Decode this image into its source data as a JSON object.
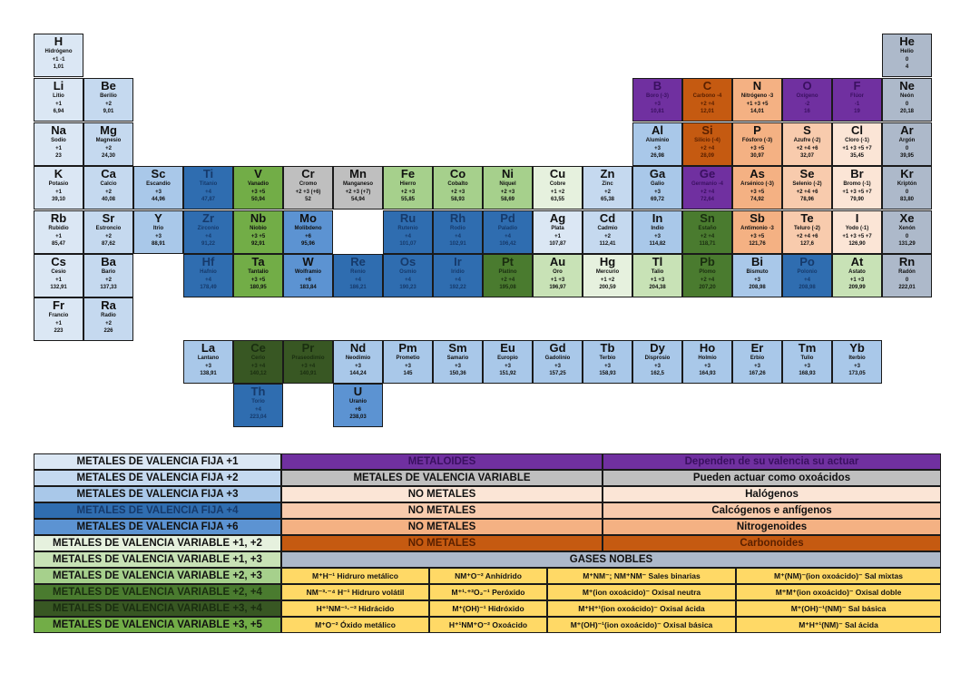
{
  "colors": {
    "fija1": "#dbe7f4",
    "fija2": "#c5d9ef",
    "fija3": "#a9c8e9",
    "fija4": "#2f6db0",
    "fija6": "#5c93d2",
    "var12": "#e6f1de",
    "var13": "#c8e2b6",
    "var23": "#a6d08c",
    "var24": "#4a7b2f",
    "var34": "#385723",
    "var35": "#72ad47",
    "metaloide": "#7030a0",
    "variable": "#bfbfbf",
    "halogen": "#fbe5d6",
    "calcogen": "#f8cbad",
    "nitrogen": "#f4b183",
    "carbon": "#c55a11",
    "noble": "#adb9ca",
    "compound": "#ffd966",
    "hydrogen": "#dbe7f4"
  },
  "elements": [
    {
      "sym": "H",
      "name": "Hidrógeno",
      "val": "+1 -1",
      "mass": "1,01",
      "col": 1,
      "row": 1,
      "cls": "hydrogen"
    },
    {
      "sym": "He",
      "name": "Helio",
      "val": "0",
      "mass": "4",
      "col": 18,
      "row": 1,
      "cls": "noble"
    },
    {
      "sym": "Li",
      "name": "Litio",
      "val": "+1",
      "mass": "6,94",
      "col": 1,
      "row": 2,
      "cls": "fija1"
    },
    {
      "sym": "Be",
      "name": "Berilio",
      "val": "+2",
      "mass": "9,01",
      "col": 2,
      "row": 2,
      "cls": "fija2"
    },
    {
      "sym": "B",
      "name": "Boro (-3)",
      "val": "+3",
      "mass": "10,81",
      "col": 13,
      "row": 2,
      "cls": "metaloide"
    },
    {
      "sym": "C",
      "name": "Carbono -4",
      "val": "+2 +4",
      "mass": "12,01",
      "col": 14,
      "row": 2,
      "cls": "carbon"
    },
    {
      "sym": "N",
      "name": "Nitrógeno -3",
      "val": "+1 +3 +5",
      "mass": "14,01",
      "col": 15,
      "row": 2,
      "cls": "nitrogen"
    },
    {
      "sym": "O",
      "name": "Oxígeno",
      "val": "-2",
      "mass": "16",
      "col": 16,
      "row": 2,
      "cls": "metaloide"
    },
    {
      "sym": "F",
      "name": "Flúor",
      "val": "-1",
      "mass": "19",
      "col": 17,
      "row": 2,
      "cls": "metaloide"
    },
    {
      "sym": "Ne",
      "name": "Neón",
      "val": "0",
      "mass": "20,18",
      "col": 18,
      "row": 2,
      "cls": "noble"
    },
    {
      "sym": "Na",
      "name": "Sodio",
      "val": "+1",
      "mass": "23",
      "col": 1,
      "row": 3,
      "cls": "fija1"
    },
    {
      "sym": "Mg",
      "name": "Magnesio",
      "val": "+2",
      "mass": "24,30",
      "col": 2,
      "row": 3,
      "cls": "fija2"
    },
    {
      "sym": "Al",
      "name": "Aluminio",
      "val": "+3",
      "mass": "26,98",
      "col": 13,
      "row": 3,
      "cls": "fija3"
    },
    {
      "sym": "Si",
      "name": "Silicio (-4)",
      "val": "+2 +4",
      "mass": "28,09",
      "col": 14,
      "row": 3,
      "cls": "carbon"
    },
    {
      "sym": "P",
      "name": "Fósforo (-3)",
      "val": "+3 +5",
      "mass": "30,97",
      "col": 15,
      "row": 3,
      "cls": "nitrogen"
    },
    {
      "sym": "S",
      "name": "Azufre (-2)",
      "val": "+2 +4 +6",
      "mass": "32,07",
      "col": 16,
      "row": 3,
      "cls": "calcogen"
    },
    {
      "sym": "Cl",
      "name": "Cloro (-1)",
      "val": "+1 +3 +5 +7",
      "mass": "35,45",
      "col": 17,
      "row": 3,
      "cls": "halogen"
    },
    {
      "sym": "Ar",
      "name": "Argón",
      "val": "0",
      "mass": "39,95",
      "col": 18,
      "row": 3,
      "cls": "noble"
    },
    {
      "sym": "K",
      "name": "Potasio",
      "val": "+1",
      "mass": "39,10",
      "col": 1,
      "row": 4,
      "cls": "fija1"
    },
    {
      "sym": "Ca",
      "name": "Calcio",
      "val": "+2",
      "mass": "40,08",
      "col": 2,
      "row": 4,
      "cls": "fija2"
    },
    {
      "sym": "Sc",
      "name": "Escandio",
      "val": "+3",
      "mass": "44,96",
      "col": 3,
      "row": 4,
      "cls": "fija3"
    },
    {
      "sym": "Ti",
      "name": "Titanio",
      "val": "+4",
      "mass": "47,87",
      "col": 4,
      "row": 4,
      "cls": "fija4"
    },
    {
      "sym": "V",
      "name": "Vanadio",
      "val": "+3 +5",
      "mass": "50,94",
      "col": 5,
      "row": 4,
      "cls": "var35"
    },
    {
      "sym": "Cr",
      "name": "Cromo",
      "val": "+2 +3 (+6)",
      "mass": "52",
      "col": 6,
      "row": 4,
      "cls": "variable"
    },
    {
      "sym": "Mn",
      "name": "Manganeso",
      "val": "+2 +3 (+7)",
      "mass": "54,94",
      "col": 7,
      "row": 4,
      "cls": "variable"
    },
    {
      "sym": "Fe",
      "name": "Hierro",
      "val": "+2 +3",
      "mass": "55,85",
      "col": 8,
      "row": 4,
      "cls": "var23"
    },
    {
      "sym": "Co",
      "name": "Cobalto",
      "val": "+2 +3",
      "mass": "58,93",
      "col": 9,
      "row": 4,
      "cls": "var23"
    },
    {
      "sym": "Ni",
      "name": "Níquel",
      "val": "+2 +3",
      "mass": "58,69",
      "col": 10,
      "row": 4,
      "cls": "var23"
    },
    {
      "sym": "Cu",
      "name": "Cobre",
      "val": "+1 +2",
      "mass": "63,55",
      "col": 11,
      "row": 4,
      "cls": "var12"
    },
    {
      "sym": "Zn",
      "name": "Zinc",
      "val": "+2",
      "mass": "65,38",
      "col": 12,
      "row": 4,
      "cls": "fija2"
    },
    {
      "sym": "Ga",
      "name": "Galio",
      "val": "+3",
      "mass": "69,72",
      "col": 13,
      "row": 4,
      "cls": "fija3"
    },
    {
      "sym": "Ge",
      "name": "Germanio -4",
      "val": "+2 +4",
      "mass": "72,64",
      "col": 14,
      "row": 4,
      "cls": "metaloide"
    },
    {
      "sym": "As",
      "name": "Arsénico (-3)",
      "val": "+3 +5",
      "mass": "74,92",
      "col": 15,
      "row": 4,
      "cls": "nitrogen"
    },
    {
      "sym": "Se",
      "name": "Selenio (-2)",
      "val": "+2 +4 +6",
      "mass": "78,96",
      "col": 16,
      "row": 4,
      "cls": "calcogen"
    },
    {
      "sym": "Br",
      "name": "Bromo (-1)",
      "val": "+1 +3 +5 +7",
      "mass": "79,90",
      "col": 17,
      "row": 4,
      "cls": "halogen"
    },
    {
      "sym": "Kr",
      "name": "Kriptón",
      "val": "0",
      "mass": "83,80",
      "col": 18,
      "row": 4,
      "cls": "noble"
    },
    {
      "sym": "Rb",
      "name": "Rubidio",
      "val": "+1",
      "mass": "85,47",
      "col": 1,
      "row": 5,
      "cls": "fija1"
    },
    {
      "sym": "Sr",
      "name": "Estroncio",
      "val": "+2",
      "mass": "87,62",
      "col": 2,
      "row": 5,
      "cls": "fija2"
    },
    {
      "sym": "Y",
      "name": "Itrio",
      "val": "+3",
      "mass": "88,91",
      "col": 3,
      "row": 5,
      "cls": "fija3"
    },
    {
      "sym": "Zr",
      "name": "Zirconio",
      "val": "+4",
      "mass": "91,22",
      "col": 4,
      "row": 5,
      "cls": "fija4"
    },
    {
      "sym": "Nb",
      "name": "Niobio",
      "val": "+3 +5",
      "mass": "92,91",
      "col": 5,
      "row": 5,
      "cls": "var35"
    },
    {
      "sym": "Mo",
      "name": "Molibdeno",
      "val": "+6",
      "mass": "95,96",
      "col": 6,
      "row": 5,
      "cls": "fija6"
    },
    {
      "sym": "Ru",
      "name": "Rutenio",
      "val": "+4",
      "mass": "101,07",
      "col": 8,
      "row": 5,
      "cls": "fija4"
    },
    {
      "sym": "Rh",
      "name": "Rodio",
      "val": "+4",
      "mass": "102,91",
      "col": 9,
      "row": 5,
      "cls": "fija4"
    },
    {
      "sym": "Pd",
      "name": "Paladio",
      "val": "+4",
      "mass": "106,42",
      "col": 10,
      "row": 5,
      "cls": "fija4"
    },
    {
      "sym": "Ag",
      "name": "Plata",
      "val": "+1",
      "mass": "107,87",
      "col": 11,
      "row": 5,
      "cls": "fija1"
    },
    {
      "sym": "Cd",
      "name": "Cadmio",
      "val": "+2",
      "mass": "112,41",
      "col": 12,
      "row": 5,
      "cls": "fija2"
    },
    {
      "sym": "In",
      "name": "Indio",
      "val": "+3",
      "mass": "114,82",
      "col": 13,
      "row": 5,
      "cls": "fija3"
    },
    {
      "sym": "Sn",
      "name": "Estaño",
      "val": "+2 +4",
      "mass": "118,71",
      "col": 14,
      "row": 5,
      "cls": "var24"
    },
    {
      "sym": "Sb",
      "name": "Antimonio -3",
      "val": "+3 +5",
      "mass": "121,76",
      "col": 15,
      "row": 5,
      "cls": "nitrogen"
    },
    {
      "sym": "Te",
      "name": "Teluro (-2)",
      "val": "+2 +4 +6",
      "mass": "127,6",
      "col": 16,
      "row": 5,
      "cls": "calcogen"
    },
    {
      "sym": "I",
      "name": "Yodo (-1)",
      "val": "+1 +3 +5 +7",
      "mass": "126,90",
      "col": 17,
      "row": 5,
      "cls": "halogen"
    },
    {
      "sym": "Xe",
      "name": "Xenón",
      "val": "0",
      "mass": "131,29",
      "col": 18,
      "row": 5,
      "cls": "noble"
    },
    {
      "sym": "Cs",
      "name": "Cesio",
      "val": "+1",
      "mass": "132,91",
      "col": 1,
      "row": 6,
      "cls": "fija1"
    },
    {
      "sym": "Ba",
      "name": "Bario",
      "val": "+2",
      "mass": "137,33",
      "col": 2,
      "row": 6,
      "cls": "fija2"
    },
    {
      "sym": "Hf",
      "name": "Hafnio",
      "val": "+4",
      "mass": "178,49",
      "col": 4,
      "row": 6,
      "cls": "fija4"
    },
    {
      "sym": "Ta",
      "name": "Tantalio",
      "val": "+3 +5",
      "mass": "180,95",
      "col": 5,
      "row": 6,
      "cls": "var35"
    },
    {
      "sym": "W",
      "name": "Wolframio",
      "val": "+6",
      "mass": "183,84",
      "col": 6,
      "row": 6,
      "cls": "fija6"
    },
    {
      "sym": "Re",
      "name": "Renio",
      "val": "+4",
      "mass": "186,21",
      "col": 7,
      "row": 6,
      "cls": "fija4"
    },
    {
      "sym": "Os",
      "name": "Osmio",
      "val": "+4",
      "mass": "190,23",
      "col": 8,
      "row": 6,
      "cls": "fija4"
    },
    {
      "sym": "Ir",
      "name": "Iridio",
      "val": "+4",
      "mass": "192,22",
      "col": 9,
      "row": 6,
      "cls": "fija4"
    },
    {
      "sym": "Pt",
      "name": "Platino",
      "val": "+2 +4",
      "mass": "195,08",
      "col": 10,
      "row": 6,
      "cls": "var24"
    },
    {
      "sym": "Au",
      "name": "Oro",
      "val": "+1 +3",
      "mass": "196,97",
      "col": 11,
      "row": 6,
      "cls": "var13"
    },
    {
      "sym": "Hg",
      "name": "Mercurio",
      "val": "+1 +2",
      "mass": "200,59",
      "col": 12,
      "row": 6,
      "cls": "var12"
    },
    {
      "sym": "Tl",
      "name": "Talio",
      "val": "+1 +3",
      "mass": "204,38",
      "col": 13,
      "row": 6,
      "cls": "var13"
    },
    {
      "sym": "Pb",
      "name": "Plomo",
      "val": "+2 +4",
      "mass": "207,20",
      "col": 14,
      "row": 6,
      "cls": "var24"
    },
    {
      "sym": "Bi",
      "name": "Bismuto",
      "val": "+3",
      "mass": "208,98",
      "col": 15,
      "row": 6,
      "cls": "fija3"
    },
    {
      "sym": "Po",
      "name": "Polonio",
      "val": "+4",
      "mass": "208,98",
      "col": 16,
      "row": 6,
      "cls": "fija4"
    },
    {
      "sym": "At",
      "name": "Astato",
      "val": "+1 +3",
      "mass": "209,99",
      "col": 17,
      "row": 6,
      "cls": "var13"
    },
    {
      "sym": "Rn",
      "name": "Radón",
      "val": "0",
      "mass": "222,01",
      "col": 18,
      "row": 6,
      "cls": "noble"
    },
    {
      "sym": "Fr",
      "name": "Francio",
      "val": "+1",
      "mass": "223",
      "col": 1,
      "row": 7,
      "cls": "fija1"
    },
    {
      "sym": "Ra",
      "name": "Radio",
      "val": "+2",
      "mass": "226",
      "col": 2,
      "row": 7,
      "cls": "fija2"
    },
    {
      "sym": "La",
      "name": "Lantano",
      "val": "+3",
      "mass": "138,91",
      "col": 4,
      "row": 8,
      "cls": "fija3"
    },
    {
      "sym": "Ce",
      "name": "Cerio",
      "val": "+3 +4",
      "mass": "140,12",
      "col": 5,
      "row": 8,
      "cls": "var34"
    },
    {
      "sym": "Pr",
      "name": "Praseodimio",
      "val": "+3 +4",
      "mass": "140,91",
      "col": 6,
      "row": 8,
      "cls": "var34"
    },
    {
      "sym": "Nd",
      "name": "Neodimio",
      "val": "+3",
      "mass": "144,24",
      "col": 7,
      "row": 8,
      "cls": "fija3"
    },
    {
      "sym": "Pm",
      "name": "Prometio",
      "val": "+3",
      "mass": "145",
      "col": 8,
      "row": 8,
      "cls": "fija3"
    },
    {
      "sym": "Sm",
      "name": "Samario",
      "val": "+3",
      "mass": "150,36",
      "col": 9,
      "row": 8,
      "cls": "fija3"
    },
    {
      "sym": "Eu",
      "name": "Europio",
      "val": "+3",
      "mass": "151,92",
      "col": 10,
      "row": 8,
      "cls": "fija3"
    },
    {
      "sym": "Gd",
      "name": "Gadolinio",
      "val": "+3",
      "mass": "157,25",
      "col": 11,
      "row": 8,
      "cls": "fija3"
    },
    {
      "sym": "Tb",
      "name": "Terbio",
      "val": "+3",
      "mass": "158,93",
      "col": 12,
      "row": 8,
      "cls": "fija3"
    },
    {
      "sym": "Dy",
      "name": "Disprosio",
      "val": "+3",
      "mass": "162,5",
      "col": 13,
      "row": 8,
      "cls": "fija3"
    },
    {
      "sym": "Ho",
      "name": "Holmio",
      "val": "+3",
      "mass": "164,93",
      "col": 14,
      "row": 8,
      "cls": "fija3"
    },
    {
      "sym": "Er",
      "name": "Erbio",
      "val": "+3",
      "mass": "167,26",
      "col": 15,
      "row": 8,
      "cls": "fija3"
    },
    {
      "sym": "Tm",
      "name": "Tulio",
      "val": "+3",
      "mass": "168,93",
      "col": 16,
      "row": 8,
      "cls": "fija3"
    },
    {
      "sym": "Yb",
      "name": "Iterbio",
      "val": "+3",
      "mass": "173,05",
      "col": 17,
      "row": 8,
      "cls": "fija3"
    },
    {
      "sym": "Th",
      "name": "Torio",
      "val": "+4",
      "mass": "223,04",
      "col": 5,
      "row": 9,
      "cls": "fija4"
    },
    {
      "sym": "U",
      "name": "Uranio",
      "val": "+6",
      "mass": "238,03",
      "col": 7,
      "row": 9,
      "cls": "fija6"
    }
  ],
  "legend_left": [
    {
      "label": "METALES DE VALENCIA FIJA +1",
      "cls": "fija1"
    },
    {
      "label": "METALES DE VALENCIA FIJA +2",
      "cls": "fija2"
    },
    {
      "label": "METALES DE VALENCIA FIJA +3",
      "cls": "fija3"
    },
    {
      "label": "METALES DE VALENCIA FIJA +4",
      "cls": "fija4"
    },
    {
      "label": "METALES DE VALENCIA FIJA +6",
      "cls": "fija6"
    },
    {
      "label": "METALES DE VALENCIA VARIABLE +1, +2",
      "cls": "var12"
    },
    {
      "label": "METALES DE VALENCIA VARIABLE +1, +3",
      "cls": "var13"
    },
    {
      "label": "METALES DE VALENCIA VARIABLE +2, +3",
      "cls": "var23"
    },
    {
      "label": "METALES DE VALENCIA VARIABLE +2, +4",
      "cls": "var24"
    },
    {
      "label": "METALES DE VALENCIA VARIABLE +3, +4",
      "cls": "var34"
    },
    {
      "label": "METALES DE VALENCIA VARIABLE +3, +5",
      "cls": "var35"
    }
  ],
  "legend_mid": [
    {
      "label": "METALOIDES",
      "desc": "Dependen de su valencia su actuar",
      "cls": "metaloide"
    },
    {
      "label": "METALES DE VALENCIA VARIABLE",
      "desc": "Pueden actuar como oxoácidos",
      "cls": "variable"
    },
    {
      "label": "NO METALES",
      "desc": "Halógenos",
      "cls": "halogen"
    },
    {
      "label": "NO METALES",
      "desc": "Calcógenos e anfígenos",
      "cls": "calcogen"
    },
    {
      "label": "NO METALES",
      "desc": "Nitrogenoides",
      "cls": "nitrogen"
    },
    {
      "label": "NO METALES",
      "desc": "Carbonoides",
      "cls": "carbon"
    }
  ],
  "noble_row": {
    "label": "GASES NOBLES"
  },
  "compounds": [
    [
      "M⁺H⁻¹ Hidruro metálico",
      "NM⁺O⁻² Anhídrido",
      "M⁺NM⁻; NM⁺NM⁻ Sales binarias",
      "M⁺(NM)⁻(ion oxoácido)⁻ Sal mixtas"
    ],
    [
      "NM⁻³·⁻⁴ H⁻¹ Hidruro volátil",
      "M⁺¹·⁺²O₂⁻¹ Peróxido",
      "M⁺(ion oxoácido)⁻ Oxisal neutra",
      "M⁺M⁺(ion oxoácido)⁻ Oxisal doble"
    ],
    [
      "H⁺¹NM⁻¹·⁻² Hidrácido",
      "M⁺(OH)⁻¹ Hidróxido",
      "M⁺H⁺¹(ion oxoácido)⁻ Oxisal ácida",
      "M⁺(OH)⁻¹(NM)⁻ Sal básica"
    ],
    [
      "M⁺O⁻² Óxido metálico",
      "H⁺¹NM⁺O⁻² Oxoácido",
      "M⁺(OH)⁻¹(ion oxoácido)⁻ Oxisal básica",
      "M⁺H⁺¹(NM)⁻ Sal ácida"
    ]
  ]
}
